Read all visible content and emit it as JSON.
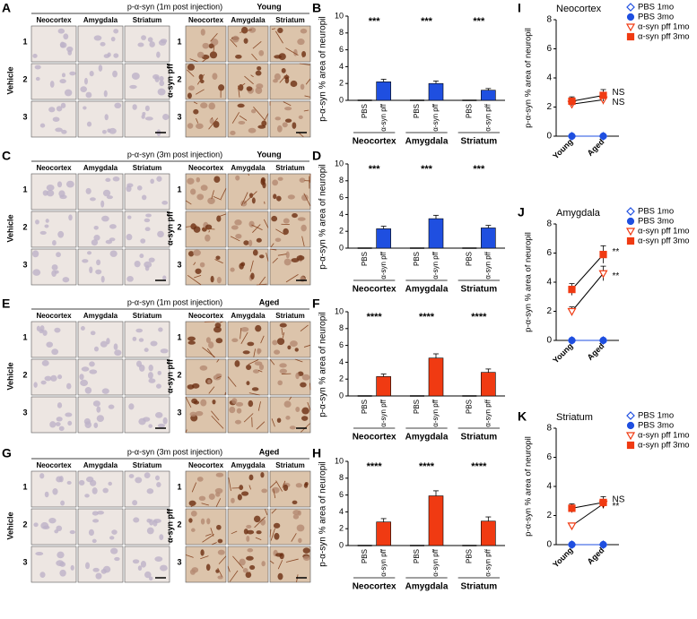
{
  "image_panels": [
    {
      "label": "A",
      "title": "p-α-syn (1m post injection)",
      "age": "Young",
      "columns": [
        "Neocortex",
        "Amygdala",
        "Striatum"
      ],
      "rows": [
        "1",
        "2",
        "3"
      ],
      "groups": [
        "Vehicle",
        "α-syn pff"
      ]
    },
    {
      "label": "C",
      "title": "p-α-syn (3m post injection)",
      "age": "Young",
      "columns": [
        "Neocortex",
        "Amygdala",
        "Striatum"
      ],
      "rows": [
        "1",
        "2",
        "3"
      ],
      "groups": [
        "Vehicle",
        "α-syn pff"
      ]
    },
    {
      "label": "E",
      "title": "p-α-syn (1m post injection)",
      "age": "Aged",
      "columns": [
        "Neocortex",
        "Amygdala",
        "Striatum"
      ],
      "rows": [
        "1",
        "2",
        "3"
      ],
      "groups": [
        "Vehicle",
        "α-syn pff"
      ]
    },
    {
      "label": "G",
      "title": "p-α-syn (3m post injection)",
      "age": "Aged",
      "columns": [
        "Neocortex",
        "Amygdala",
        "Striatum"
      ],
      "rows": [
        "1",
        "2",
        "3"
      ],
      "groups": [
        "Vehicle",
        "α-syn pff"
      ]
    }
  ],
  "chart_data": [
    {
      "type": "bar",
      "label": "B",
      "ylabel": "p-α-syn % area of neuropil",
      "categories": [
        "PBS",
        "α-syn pff",
        "PBS",
        "α-syn pff",
        "PBS",
        "α-syn pff"
      ],
      "groups": [
        "Neocortex",
        "Amygdala",
        "Striatum"
      ],
      "significance": [
        "***",
        "***",
        "***"
      ],
      "values": [
        0,
        2.2,
        0,
        2.0,
        0,
        1.2
      ],
      "errors": [
        0,
        0.3,
        0,
        0.3,
        0,
        0.2
      ],
      "color": "#1f4fe0",
      "ylim": [
        0,
        10
      ],
      "yticks": [
        0,
        2,
        4,
        6,
        8,
        10
      ]
    },
    {
      "type": "bar",
      "label": "D",
      "ylabel": "p-α-syn % area of neuropil",
      "categories": [
        "PBS",
        "α-syn pff",
        "PBS",
        "α-syn pff",
        "PBS",
        "α-syn pff"
      ],
      "groups": [
        "Neocortex",
        "Amygdala",
        "Striatum"
      ],
      "significance": [
        "***",
        "***",
        "***"
      ],
      "values": [
        0,
        2.3,
        0,
        3.5,
        0,
        2.4
      ],
      "errors": [
        0,
        0.3,
        0,
        0.4,
        0,
        0.3
      ],
      "color": "#1f4fe0",
      "ylim": [
        0,
        10
      ],
      "yticks": [
        0,
        2,
        4,
        6,
        8,
        10
      ]
    },
    {
      "type": "bar",
      "label": "F",
      "ylabel": "p-α-syn % area of neuropil",
      "categories": [
        "PBS",
        "α-syn pff",
        "PBS",
        "α-syn pff",
        "PBS",
        "α-syn pff"
      ],
      "groups": [
        "Neocortex",
        "Amygdala",
        "Striatum"
      ],
      "significance": [
        "****",
        "****",
        "****"
      ],
      "values": [
        0,
        2.3,
        0,
        4.5,
        0,
        2.8
      ],
      "errors": [
        0,
        0.3,
        0,
        0.5,
        0,
        0.4
      ],
      "color": "#f03a12",
      "ylim": [
        0,
        10
      ],
      "yticks": [
        0,
        2,
        4,
        6,
        8,
        10
      ]
    },
    {
      "type": "bar",
      "label": "H",
      "ylabel": "p-α-syn % area of neuropil",
      "categories": [
        "PBS",
        "α-syn pff",
        "PBS",
        "α-syn pff",
        "PBS",
        "α-syn pff"
      ],
      "groups": [
        "Neocortex",
        "Amygdala",
        "Striatum"
      ],
      "significance": [
        "****",
        "****",
        "****"
      ],
      "values": [
        0,
        2.8,
        0,
        5.9,
        0,
        2.9
      ],
      "errors": [
        0,
        0.4,
        0,
        0.6,
        0,
        0.5
      ],
      "color": "#f03a12",
      "ylim": [
        0,
        10
      ],
      "yticks": [
        0,
        2,
        4,
        6,
        8,
        10
      ]
    },
    {
      "type": "line",
      "label": "I",
      "title": "Neocortex",
      "ylabel": "p-α-syn % area of neuropil",
      "categories": [
        "Young",
        "Aged"
      ],
      "annotations": [
        "NS",
        "NS"
      ],
      "ylim": [
        0,
        8
      ],
      "yticks": [
        0,
        2,
        4,
        6,
        8
      ],
      "series": [
        {
          "name": "PBS 1mo",
          "color": "#1f4fe0",
          "marker": "diamond-open",
          "values": [
            0,
            0
          ],
          "errors": [
            0,
            0
          ]
        },
        {
          "name": "PBS 3mo",
          "color": "#1f4fe0",
          "marker": "circle",
          "values": [
            0,
            0
          ],
          "errors": [
            0,
            0
          ]
        },
        {
          "name": "α-syn pff 1mo",
          "color": "#f03a12",
          "marker": "triangle-open",
          "values": [
            2.2,
            2.5
          ],
          "errors": [
            0.2,
            0.3
          ]
        },
        {
          "name": "α-syn pff 3mo",
          "color": "#f03a12",
          "marker": "square",
          "values": [
            2.4,
            2.8
          ],
          "errors": [
            0.3,
            0.4
          ]
        }
      ]
    },
    {
      "type": "line",
      "label": "J",
      "title": "Amygdala",
      "ylabel": "p-α-syn % area of neuropil",
      "categories": [
        "Young",
        "Aged"
      ],
      "annotations": [
        "**",
        "**"
      ],
      "ylim": [
        0,
        8
      ],
      "yticks": [
        0,
        2,
        4,
        6,
        8
      ],
      "series": [
        {
          "name": "PBS 1mo",
          "color": "#1f4fe0",
          "marker": "diamond-open",
          "values": [
            0,
            0
          ],
          "errors": [
            0,
            0
          ]
        },
        {
          "name": "PBS 3mo",
          "color": "#1f4fe0",
          "marker": "circle",
          "values": [
            0,
            0
          ],
          "errors": [
            0,
            0
          ]
        },
        {
          "name": "α-syn pff 1mo",
          "color": "#f03a12",
          "marker": "triangle-open",
          "values": [
            2.0,
            4.6
          ],
          "errors": [
            0.3,
            0.5
          ]
        },
        {
          "name": "α-syn pff 3mo",
          "color": "#f03a12",
          "marker": "square",
          "values": [
            3.5,
            5.9
          ],
          "errors": [
            0.4,
            0.6
          ]
        }
      ]
    },
    {
      "type": "line",
      "label": "K",
      "title": "Striatum",
      "ylabel": "p-α-syn % area of neuropil",
      "categories": [
        "Young",
        "Aged"
      ],
      "annotations": [
        "NS",
        "**"
      ],
      "ylim": [
        0,
        8
      ],
      "yticks": [
        0,
        2,
        4,
        6,
        8
      ],
      "series": [
        {
          "name": "PBS 1mo",
          "color": "#1f4fe0",
          "marker": "diamond-open",
          "values": [
            0,
            0
          ],
          "errors": [
            0,
            0
          ]
        },
        {
          "name": "PBS 3mo",
          "color": "#1f4fe0",
          "marker": "circle",
          "values": [
            0,
            0
          ],
          "errors": [
            0,
            0
          ]
        },
        {
          "name": "α-syn pff 1mo",
          "color": "#f03a12",
          "marker": "triangle-open",
          "values": [
            1.3,
            2.8
          ],
          "errors": [
            0.1,
            0.3
          ]
        },
        {
          "name": "α-syn pff 3mo",
          "color": "#f03a12",
          "marker": "square",
          "values": [
            2.5,
            2.9
          ],
          "errors": [
            0.3,
            0.4
          ]
        }
      ]
    }
  ]
}
